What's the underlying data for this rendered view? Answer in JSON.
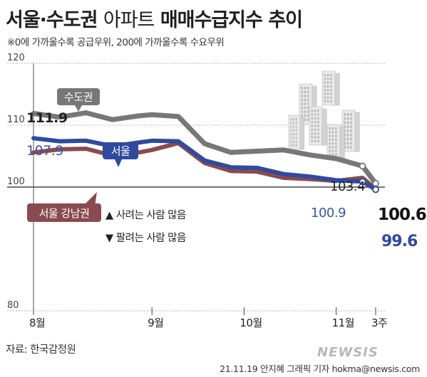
{
  "title_main": "서울·수도권",
  "title_light": "아파트",
  "title_rest": "매매수급지수 추이",
  "subtitle": "※0에 가까울수록 공급우위, 200에 가까울수록 수요우위",
  "source": "자료: 한국감정원",
  "credit": "21.11.19 안지혜 그래픽 기자 hokma@newsis.com",
  "watermark": "NEWSIS",
  "annotations": {
    "up": "▲ 사려는 사람 많음",
    "down": "▼ 팔려는 사람 많음"
  },
  "colors": {
    "capital": "#777777",
    "seoul": "#2f4a9e",
    "gangnam": "#8a4b4e",
    "seoul_label_text": "#3b55a6"
  },
  "chart_data": {
    "type": "line",
    "ylim": [
      80,
      120
    ],
    "yticks": [
      80,
      100,
      110,
      120
    ],
    "x_labels": [
      {
        "label": "8월",
        "x": 0
      },
      {
        "label": "9월",
        "x": 9
      },
      {
        "label": "10월",
        "x": 16
      },
      {
        "label": "11월",
        "x": 23
      },
      {
        "label": "3주",
        "x": 26
      }
    ],
    "x_range": [
      0,
      26
    ],
    "series": [
      {
        "name": "수도권",
        "color": "#777777",
        "values": [
          [
            0,
            111.9
          ],
          [
            2,
            111.3
          ],
          [
            4,
            112.0
          ],
          [
            6,
            110.9
          ],
          [
            8,
            111.5
          ],
          [
            9,
            111.7
          ],
          [
            11,
            111.4
          ],
          [
            13,
            107.0
          ],
          [
            15,
            105.6
          ],
          [
            17,
            105.8
          ],
          [
            19,
            106.0
          ],
          [
            21,
            105.2
          ],
          [
            23,
            104.6
          ],
          [
            25,
            103.4
          ],
          [
            26,
            100.6
          ]
        ],
        "start_label": "111.9",
        "mid_label": "103.4",
        "end_label": "100.6"
      },
      {
        "name": "서울",
        "color": "#2f4a9e",
        "values": [
          [
            0,
            107.9
          ],
          [
            2,
            107.4
          ],
          [
            4,
            107.5
          ],
          [
            6,
            106.6
          ],
          [
            8,
            107.2
          ],
          [
            9,
            107.5
          ],
          [
            11,
            107.4
          ],
          [
            13,
            104.3
          ],
          [
            15,
            103.2
          ],
          [
            17,
            103.1
          ],
          [
            19,
            102.1
          ],
          [
            21,
            101.7
          ],
          [
            23,
            101.1
          ],
          [
            25,
            100.9
          ],
          [
            26,
            99.6
          ]
        ],
        "start_label": "107.9",
        "mid_label": "100.9",
        "end_label": "99.6"
      },
      {
        "name": "서울 강남권",
        "color": "#8a4b4e",
        "values": [
          [
            0,
            105.6
          ],
          [
            2,
            106.1
          ],
          [
            4,
            106.2
          ],
          [
            6,
            105.1
          ],
          [
            8,
            105.6
          ],
          [
            9,
            106.0
          ],
          [
            11,
            107.1
          ],
          [
            13,
            103.9
          ],
          [
            15,
            102.6
          ],
          [
            17,
            102.5
          ],
          [
            19,
            101.5
          ],
          [
            21,
            101.3
          ],
          [
            23,
            101.0
          ],
          [
            25,
            101.5
          ],
          [
            26,
            99.7
          ]
        ]
      }
    ]
  }
}
